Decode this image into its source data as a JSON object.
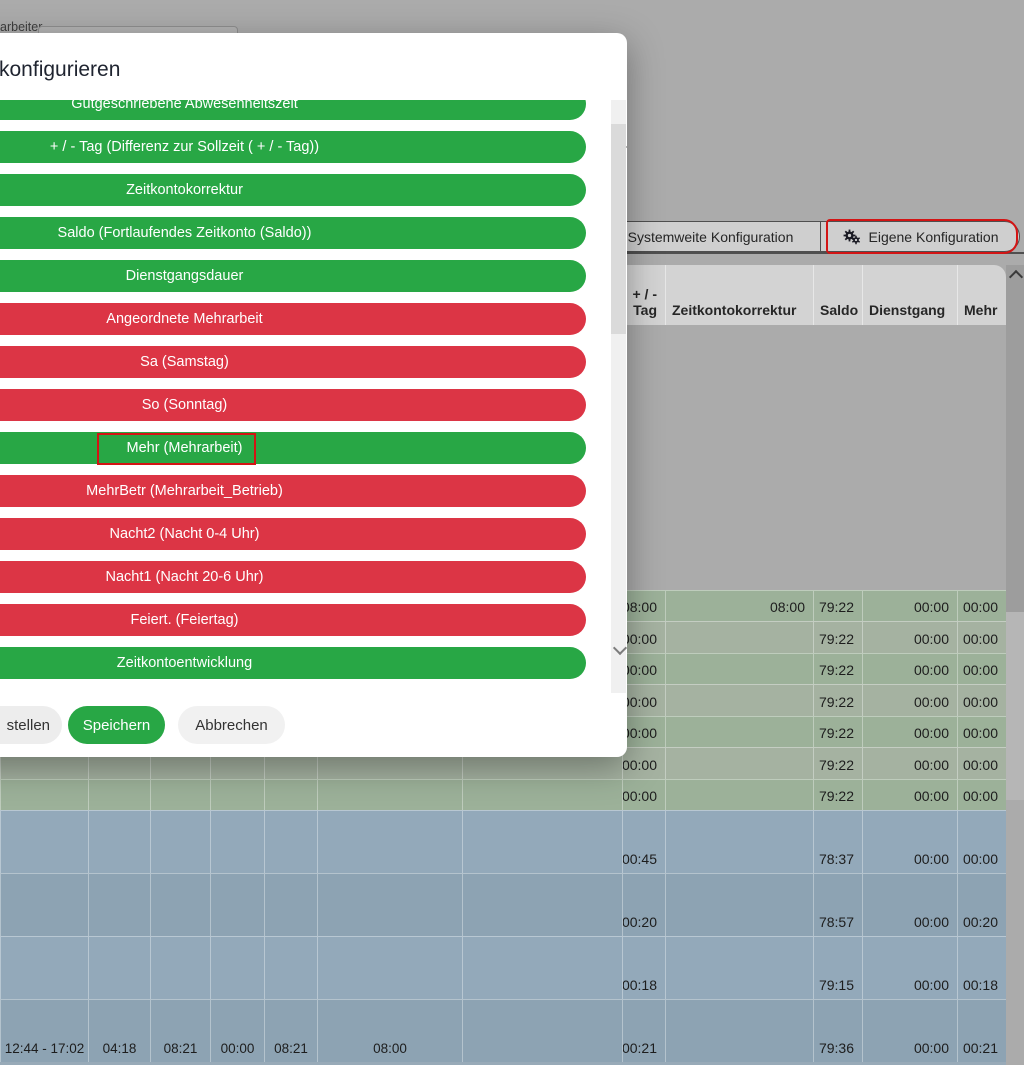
{
  "colors": {
    "active_green": "#28a745",
    "inactive_red": "#dc3545",
    "annotation_red": "#d31414",
    "row_green_a": "#9cb199",
    "row_green_b": "#a5b2a1",
    "row_blue_a": "#93a9ba",
    "row_blue_b": "#8da3b3"
  },
  "page": {
    "employee_label": "arbeiter",
    "tabs": [
      {
        "label": "Systemweite Konfiguration"
      },
      {
        "label": "Eigene Konfiguration",
        "icon": "gears-icon",
        "annotated": true
      }
    ],
    "table": {
      "headers": [
        {
          "lines": [
            "+ / -",
            "Tag"
          ]
        },
        {
          "lines": [
            "Zeitkontokorrektur"
          ]
        },
        {
          "lines": [
            "Saldo"
          ]
        },
        {
          "lines": [
            "Dienstgang"
          ]
        },
        {
          "lines": [
            "Mehr"
          ]
        }
      ],
      "rows": [
        {
          "group": "green",
          "values": [
            "08:00",
            "08:00",
            "79:22",
            "00:00",
            "00:00"
          ]
        },
        {
          "group": "green",
          "values": [
            "00:00",
            "",
            "79:22",
            "00:00",
            "00:00"
          ]
        },
        {
          "group": "green",
          "values": [
            "00:00",
            "",
            "79:22",
            "00:00",
            "00:00"
          ]
        },
        {
          "group": "green",
          "values": [
            "00:00",
            "",
            "79:22",
            "00:00",
            "00:00"
          ]
        },
        {
          "group": "green",
          "values": [
            "00:00",
            "",
            "79:22",
            "00:00",
            "00:00"
          ]
        },
        {
          "group": "green",
          "values": [
            "00:00",
            "",
            "79:22",
            "00:00",
            "00:00"
          ]
        },
        {
          "group": "green",
          "values": [
            "00:00",
            "",
            "79:22",
            "00:00",
            "00:00"
          ]
        },
        {
          "group": "blue",
          "values": [
            "00:45",
            "",
            "78:37",
            "00:00",
            "00:00"
          ]
        },
        {
          "group": "blue",
          "values": [
            "00:20",
            "",
            "78:57",
            "00:00",
            "00:20"
          ]
        },
        {
          "group": "blue",
          "values": [
            "00:18",
            "",
            "79:15",
            "00:00",
            "00:18"
          ]
        },
        {
          "group": "blue",
          "values": [
            "00:21",
            "",
            "79:36",
            "00:00",
            "00:21"
          ],
          "left_values": [
            "12:44  -  17:02",
            "04:18",
            "08:21",
            "00:00",
            "08:21",
            "08:00",
            ""
          ]
        }
      ]
    }
  },
  "modal": {
    "title": "konfigurieren",
    "items": [
      {
        "label": "Gutgeschriebene Abwesenheitszeit",
        "state": "active"
      },
      {
        "label": "+ / - Tag (Differenz zur Sollzeit ( + / - Tag))",
        "state": "active"
      },
      {
        "label": "Zeitkontokorrektur",
        "state": "active"
      },
      {
        "label": "Saldo (Fortlaufendes Zeitkonto (Saldo))",
        "state": "active"
      },
      {
        "label": "Dienstgangsdauer",
        "state": "active"
      },
      {
        "label": "Angeordnete Mehrarbeit",
        "state": "inactive"
      },
      {
        "label": "Sa (Samstag)",
        "state": "inactive"
      },
      {
        "label": "So (Sonntag)",
        "state": "inactive"
      },
      {
        "label": "Mehr (Mehrarbeit)",
        "state": "active",
        "annotated": true
      },
      {
        "label": "MehrBetr (Mehrarbeit_Betrieb)",
        "state": "inactive"
      },
      {
        "label": "Nacht2 (Nacht 0-4 Uhr)",
        "state": "inactive"
      },
      {
        "label": "Nacht1 (Nacht 20-6 Uhr)",
        "state": "inactive"
      },
      {
        "label": "Feiert. (Feiertag)",
        "state": "inactive"
      },
      {
        "label": "Zeitkontoentwicklung",
        "state": "active"
      }
    ],
    "buttons": {
      "restore_label": "stellen",
      "save_label": "Speichern",
      "cancel_label": "Abbrechen"
    }
  }
}
